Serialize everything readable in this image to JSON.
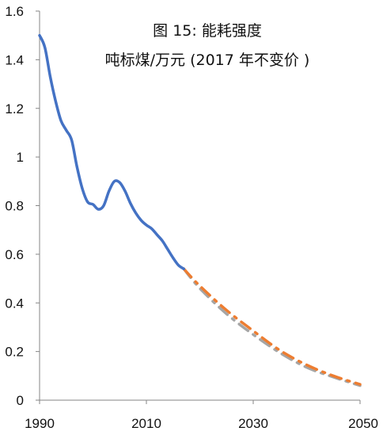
{
  "chart_data": {
    "type": "line",
    "title": "图 15: 能耗强度",
    "subtitle": "吨标煤/万元 (2017 年不变价 )",
    "xlabel": "",
    "ylabel": "",
    "xlim": [
      1990,
      2050
    ],
    "ylim": [
      0,
      1.6
    ],
    "x_ticks": [
      "1990",
      "2010",
      "2030",
      "2050"
    ],
    "y_ticks": [
      "0",
      "0.2",
      "0.4",
      "0.6",
      "0.8",
      "1",
      "1.2",
      "1.4",
      "1.6"
    ],
    "grid": false,
    "series": [
      {
        "style": "solid",
        "color": "#4472C4",
        "x": [
          1990,
          1991,
          1992,
          1993,
          1994,
          1995,
          1996,
          1997,
          1998,
          1999,
          2000,
          2001,
          2002,
          2003,
          2004,
          2005,
          2006,
          2007,
          2008,
          2009,
          2010,
          2011,
          2012,
          2013,
          2014,
          2015,
          2016,
          2017
        ],
        "y": [
          1.5,
          1.45,
          1.33,
          1.23,
          1.15,
          1.11,
          1.07,
          0.96,
          0.87,
          0.815,
          0.805,
          0.785,
          0.8,
          0.86,
          0.9,
          0.895,
          0.86,
          0.81,
          0.77,
          0.74,
          0.72,
          0.705,
          0.68,
          0.655,
          0.62,
          0.585,
          0.555,
          0.54
        ]
      },
      {
        "style": "dashdot",
        "color": "#ED7D31",
        "x": [
          2017,
          2020,
          2025,
          2030,
          2035,
          2040,
          2045,
          2050
        ],
        "y": [
          0.54,
          0.47,
          0.37,
          0.285,
          0.205,
          0.145,
          0.1,
          0.065
        ]
      },
      {
        "style": "dashdot",
        "color": "#A5A5A5",
        "x": [
          2017,
          2020,
          2025,
          2030,
          2035,
          2040,
          2045,
          2050
        ],
        "y": [
          0.54,
          0.46,
          0.355,
          0.27,
          0.195,
          0.135,
          0.095,
          0.06
        ]
      }
    ]
  }
}
